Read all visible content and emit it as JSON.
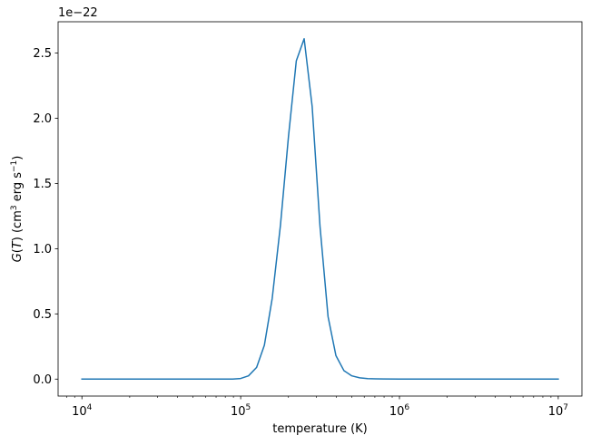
{
  "chart_data": {
    "type": "line",
    "xscale": "log",
    "xlim": [
      7080,
      14100000
    ],
    "ylim": [
      -0.13,
      2.74
    ],
    "offset_text": "1e−22",
    "xlabel": "temperature (K)",
    "ylabel_plain": "G(T) (cm³ erg s⁻¹)",
    "x_ticks": [
      {
        "value": 10000,
        "base": "10",
        "exp": "4"
      },
      {
        "value": 100000,
        "base": "10",
        "exp": "5"
      },
      {
        "value": 1000000,
        "base": "10",
        "exp": "6"
      },
      {
        "value": 10000000,
        "base": "10",
        "exp": "7"
      }
    ],
    "y_ticks": [
      {
        "value": 0.0,
        "label": "0.0"
      },
      {
        "value": 0.5,
        "label": "0.5"
      },
      {
        "value": 1.0,
        "label": "1.0"
      },
      {
        "value": 1.5,
        "label": "1.5"
      },
      {
        "value": 2.0,
        "label": "2.0"
      },
      {
        "value": 2.5,
        "label": "2.5"
      }
    ],
    "series": [
      {
        "color": "#1f77b4",
        "x": [
          10000,
          20000,
          50000,
          89000,
          100000,
          112000,
          126000,
          141000,
          158000,
          178000,
          200000,
          224000,
          251000,
          282000,
          316000,
          355000,
          398000,
          447000,
          501000,
          562000,
          631000,
          708000,
          794000,
          1000000,
          2000000,
          5000000,
          10000000
        ],
        "y": [
          0.0,
          0.0,
          0.0,
          0.0,
          0.005,
          0.025,
          0.09,
          0.26,
          0.62,
          1.18,
          1.86,
          2.44,
          2.61,
          2.09,
          1.17,
          0.48,
          0.18,
          0.065,
          0.025,
          0.01,
          0.004,
          0.002,
          0.001,
          0.0,
          0.0,
          0.0,
          0.0
        ]
      }
    ],
    "grid": false,
    "legend": false
  }
}
